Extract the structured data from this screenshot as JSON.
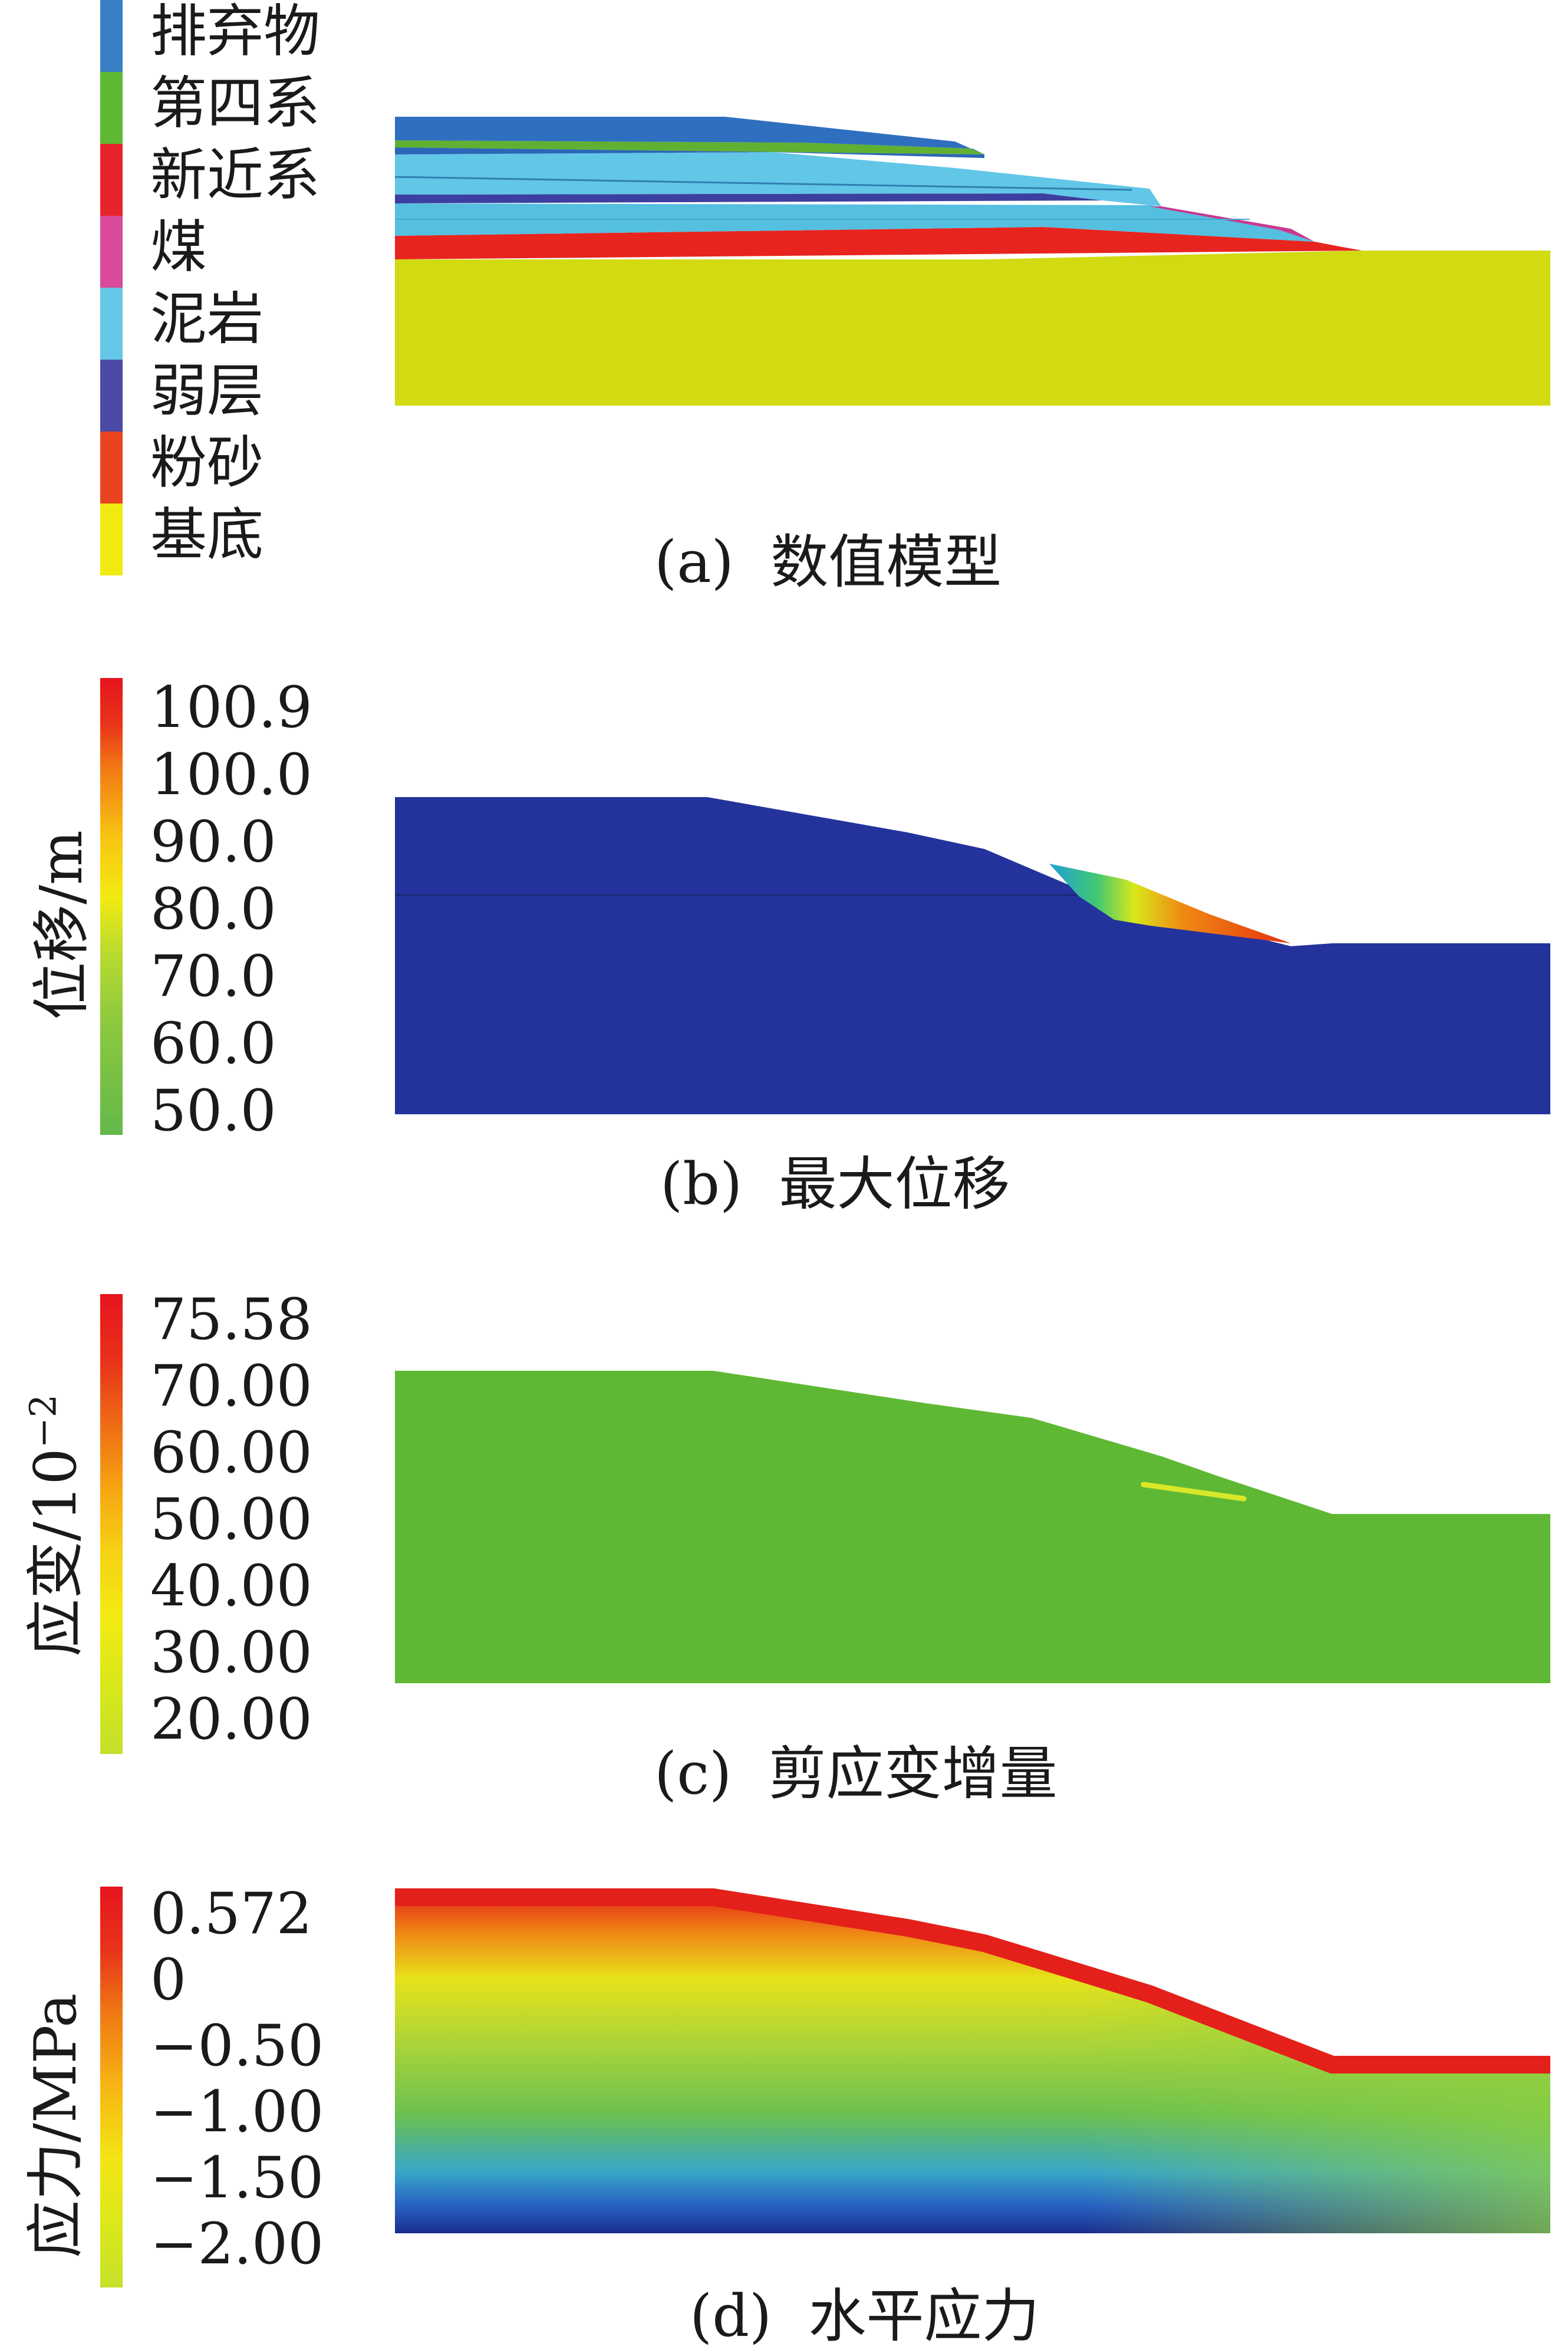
{
  "panels": {
    "a": {
      "caption_letter": "(a)",
      "caption_text": "数值模型",
      "legend": [
        {
          "label": "排弃物",
          "color": "#3a7fc6"
        },
        {
          "label": "第四系",
          "color": "#5fb834"
        },
        {
          "label": "新近系",
          "color": "#e8242b"
        },
        {
          "label": "煤",
          "color": "#d94a9a"
        },
        {
          "label": "泥岩",
          "color": "#66c8e8"
        },
        {
          "label": "弱层",
          "color": "#4b4aa6"
        },
        {
          "label": "粉砂",
          "color": "#e8441f"
        },
        {
          "label": "基底",
          "color": "#f0ea10"
        }
      ]
    },
    "b": {
      "caption_letter": "(b)",
      "caption_text": "最大位移",
      "ylabel": "位移/m",
      "ticks": [
        "100.9",
        "100.0",
        "90.0",
        "80.0",
        "70.0",
        "60.0",
        "50.0"
      ]
    },
    "c": {
      "caption_letter": "(c)",
      "caption_text": "剪应变增量",
      "ylabel_main": "应变/10",
      "ylabel_sup": "−2",
      "ticks": [
        "75.58",
        "70.00",
        "60.00",
        "50.00",
        "40.00",
        "30.00",
        "20.00"
      ]
    },
    "d": {
      "caption_letter": "(d)",
      "caption_text": "水平应力",
      "ylabel": "应力/MPa",
      "ticks": [
        "0.572",
        "0",
        "−0.50",
        "−1.00",
        "−1.50",
        "−2.00"
      ]
    }
  }
}
